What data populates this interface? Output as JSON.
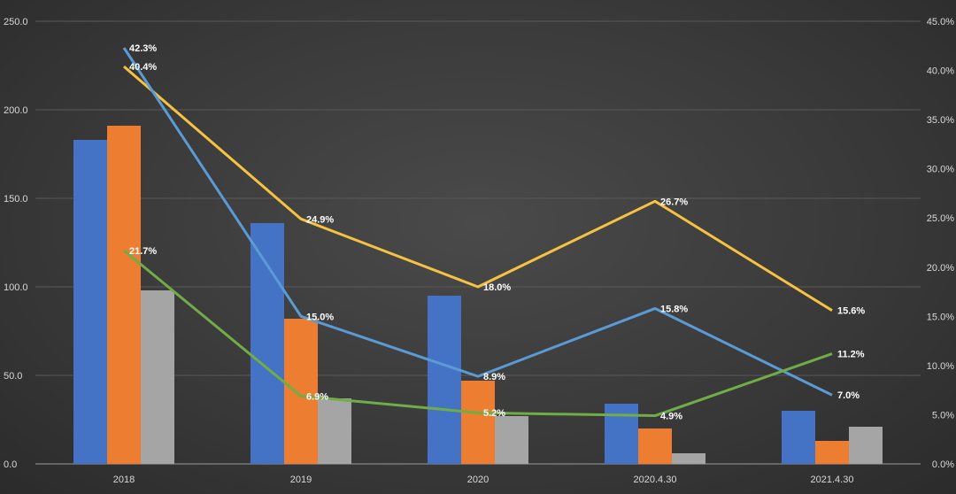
{
  "chart_data": {
    "type": "bar",
    "title": "",
    "categories": [
      "2018",
      "2019",
      "2020",
      "2020.4.30",
      "2021.4.30"
    ],
    "y_left_ticks": [
      "0.0",
      "50.0",
      "100.0",
      "150.0",
      "200.0",
      "250.0"
    ],
    "y_right_ticks": [
      "0.0%",
      "5.0%",
      "10.0%",
      "15.0%",
      "20.0%",
      "25.0%",
      "30.0%",
      "35.0%",
      "40.0%",
      "45.0%"
    ],
    "ylim_left": [
      0,
      250
    ],
    "ylim_right": [
      0,
      45
    ],
    "grid": true,
    "bar_series": [
      {
        "values": [
          183,
          136,
          95,
          34,
          30
        ],
        "color": "#4472c4"
      },
      {
        "values": [
          191,
          82,
          47,
          20,
          13
        ],
        "color": "#ed7d31"
      },
      {
        "values": [
          98,
          37,
          27,
          6,
          21
        ],
        "color": "#a5a5a5"
      }
    ],
    "line_series": [
      {
        "values": [
          40.4,
          24.9,
          18.0,
          26.7,
          15.6
        ],
        "labels": [
          "40.4%",
          "24.9%",
          "18.0%",
          "26.7%",
          "15.6%"
        ],
        "color": "#f5c242"
      },
      {
        "values": [
          42.3,
          15.0,
          8.9,
          15.8,
          7.0
        ],
        "labels": [
          "42.3%",
          "15.0%",
          "8.9%",
          "15.8%",
          "7.0%"
        ],
        "color": "#5b9bd5"
      },
      {
        "values": [
          21.7,
          6.9,
          5.2,
          4.9,
          11.2
        ],
        "labels": [
          "21.7%",
          "6.9%",
          "5.2%",
          "4.9%",
          "11.2%"
        ],
        "color": "#70ad47"
      }
    ]
  }
}
